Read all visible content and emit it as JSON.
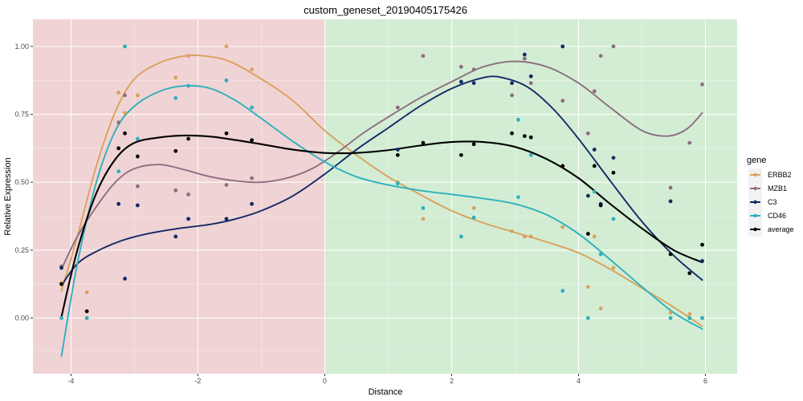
{
  "chart_data": {
    "type": "scatter",
    "title": "custom_geneset_20190405175426",
    "xlabel": "Distance",
    "ylabel": "Relative Expression",
    "xlim": [
      -4.6,
      6.5
    ],
    "ylim": [
      -0.205,
      1.1
    ],
    "x_ticks": [
      -4,
      -2,
      0,
      2,
      4,
      6
    ],
    "x_tick_labels": [
      "-4",
      "-2",
      "0",
      "2",
      "4",
      "6"
    ],
    "y_ticks": [
      0,
      0.25,
      0.5,
      0.75,
      1
    ],
    "y_tick_labels": [
      "0.00",
      "0.25",
      "0.50",
      "0.75",
      "1.00"
    ],
    "regions": [
      {
        "from": -4.6,
        "to": 0,
        "color": "#f0d3d4"
      },
      {
        "from": 0,
        "to": 6.5,
        "color": "#d3edd4"
      }
    ],
    "grid": true,
    "legend": {
      "title": "gene",
      "position": "right"
    },
    "series": [
      {
        "name": "ERBB2",
        "color": "#d9a25d",
        "points": [
          [
            -4.15,
            0.13
          ],
          [
            -3.75,
            0.095
          ],
          [
            -3.75,
            0.0
          ],
          [
            -3.25,
            0.83
          ],
          [
            -3.15,
            0.755
          ],
          [
            -2.95,
            0.82
          ],
          [
            -2.35,
            0.885
          ],
          [
            -2.15,
            0.965
          ],
          [
            -1.55,
            1.0
          ],
          [
            -1.15,
            0.915
          ],
          [
            1.15,
            0.5
          ],
          [
            1.55,
            0.365
          ],
          [
            2.15,
            0.3
          ],
          [
            2.35,
            0.405
          ],
          [
            2.95,
            0.32
          ],
          [
            3.15,
            0.3
          ],
          [
            3.25,
            0.3
          ],
          [
            3.75,
            0.335
          ],
          [
            4.15,
            0.115
          ],
          [
            4.25,
            0.3
          ],
          [
            4.35,
            0.035
          ],
          [
            4.55,
            0.185
          ],
          [
            5.45,
            0.02
          ],
          [
            5.75,
            0.015
          ],
          [
            5.95,
            0.0
          ]
        ],
        "curve": [
          [
            -4.15,
            0.1
          ],
          [
            -3.9,
            0.3
          ],
          [
            -3.6,
            0.56
          ],
          [
            -3.3,
            0.76
          ],
          [
            -3.0,
            0.88
          ],
          [
            -2.6,
            0.94
          ],
          [
            -2.2,
            0.965
          ],
          [
            -1.9,
            0.965
          ],
          [
            -1.5,
            0.945
          ],
          [
            -1.0,
            0.88
          ],
          [
            -0.5,
            0.8
          ],
          [
            0,
            0.69
          ],
          [
            0.5,
            0.6
          ],
          [
            1,
            0.52
          ],
          [
            1.5,
            0.455
          ],
          [
            2,
            0.395
          ],
          [
            2.5,
            0.35
          ],
          [
            3,
            0.315
          ],
          [
            3.5,
            0.28
          ],
          [
            4,
            0.24
          ],
          [
            4.5,
            0.18
          ],
          [
            5,
            0.11
          ],
          [
            5.5,
            0.04
          ],
          [
            5.95,
            -0.03
          ]
        ]
      },
      {
        "name": "MZB1",
        "color": "#8b6e80",
        "points": [
          [
            -4.15,
            0.19
          ],
          [
            -3.25,
            0.72
          ],
          [
            -3.15,
            0.82
          ],
          [
            -2.95,
            0.485
          ],
          [
            -2.35,
            0.47
          ],
          [
            -2.15,
            0.455
          ],
          [
            -1.55,
            0.49
          ],
          [
            -1.15,
            0.515
          ],
          [
            1.15,
            0.775
          ],
          [
            1.55,
            0.965
          ],
          [
            2.15,
            0.925
          ],
          [
            2.35,
            0.915
          ],
          [
            2.95,
            0.82
          ],
          [
            3.15,
            0.955
          ],
          [
            3.25,
            0.865
          ],
          [
            3.75,
            0.8
          ],
          [
            4.15,
            0.68
          ],
          [
            4.25,
            0.835
          ],
          [
            4.35,
            0.965
          ],
          [
            4.55,
            1.0
          ],
          [
            5.45,
            0.48
          ],
          [
            5.75,
            0.645
          ],
          [
            5.95,
            0.86
          ]
        ],
        "curve": [
          [
            -4.15,
            0.18
          ],
          [
            -3.9,
            0.3
          ],
          [
            -3.6,
            0.41
          ],
          [
            -3.3,
            0.5
          ],
          [
            -3.0,
            0.55
          ],
          [
            -2.6,
            0.565
          ],
          [
            -2.2,
            0.545
          ],
          [
            -1.8,
            0.52
          ],
          [
            -1.4,
            0.505
          ],
          [
            -1.0,
            0.5
          ],
          [
            -0.6,
            0.515
          ],
          [
            -0.2,
            0.55
          ],
          [
            0.2,
            0.61
          ],
          [
            0.6,
            0.68
          ],
          [
            1,
            0.74
          ],
          [
            1.5,
            0.81
          ],
          [
            2,
            0.87
          ],
          [
            2.5,
            0.925
          ],
          [
            3,
            0.945
          ],
          [
            3.5,
            0.925
          ],
          [
            4,
            0.865
          ],
          [
            4.5,
            0.775
          ],
          [
            5,
            0.69
          ],
          [
            5.4,
            0.67
          ],
          [
            5.7,
            0.695
          ],
          [
            5.95,
            0.755
          ]
        ]
      },
      {
        "name": "C3",
        "color": "#112a66",
        "points": [
          [
            -4.15,
            0.185
          ],
          [
            -3.25,
            0.42
          ],
          [
            -3.15,
            0.145
          ],
          [
            -2.95,
            0.415
          ],
          [
            -2.35,
            0.3
          ],
          [
            -2.15,
            0.365
          ],
          [
            -1.55,
            0.365
          ],
          [
            -1.15,
            0.42
          ],
          [
            1.15,
            0.62
          ],
          [
            2.15,
            0.87
          ],
          [
            2.35,
            0.865
          ],
          [
            2.95,
            0.865
          ],
          [
            3.15,
            0.97
          ],
          [
            3.25,
            0.89
          ],
          [
            3.75,
            1.0
          ],
          [
            4.15,
            0.45
          ],
          [
            4.25,
            0.62
          ],
          [
            4.35,
            0.42
          ],
          [
            4.55,
            0.59
          ],
          [
            5.45,
            0.43
          ],
          [
            5.95,
            0.21
          ]
        ],
        "curve": [
          [
            -4.15,
            0.12
          ],
          [
            -3.9,
            0.2
          ],
          [
            -3.6,
            0.245
          ],
          [
            -3.2,
            0.285
          ],
          [
            -2.8,
            0.31
          ],
          [
            -2.3,
            0.33
          ],
          [
            -1.8,
            0.345
          ],
          [
            -1.4,
            0.365
          ],
          [
            -1.0,
            0.395
          ],
          [
            -0.5,
            0.45
          ],
          [
            0,
            0.53
          ],
          [
            0.5,
            0.62
          ],
          [
            1,
            0.7
          ],
          [
            1.5,
            0.78
          ],
          [
            2,
            0.845
          ],
          [
            2.5,
            0.885
          ],
          [
            2.8,
            0.885
          ],
          [
            3.2,
            0.85
          ],
          [
            3.6,
            0.77
          ],
          [
            4,
            0.66
          ],
          [
            4.5,
            0.505
          ],
          [
            5,
            0.355
          ],
          [
            5.5,
            0.23
          ],
          [
            5.95,
            0.14
          ]
        ]
      },
      {
        "name": "CD46",
        "color": "#2eb0bd",
        "points": [
          [
            -4.15,
            0.0
          ],
          [
            -3.75,
            0.0
          ],
          [
            -3.25,
            0.54
          ],
          [
            -3.15,
            1.0
          ],
          [
            -2.95,
            0.66
          ],
          [
            -2.35,
            0.81
          ],
          [
            -2.15,
            0.855
          ],
          [
            -1.55,
            0.875
          ],
          [
            -1.15,
            0.775
          ],
          [
            1.15,
            0.495
          ],
          [
            1.55,
            0.405
          ],
          [
            2.15,
            0.3
          ],
          [
            2.35,
            0.37
          ],
          [
            3.05,
            0.445
          ],
          [
            3.05,
            0.73
          ],
          [
            3.25,
            0.6
          ],
          [
            3.75,
            0.1
          ],
          [
            4.15,
            0.0
          ],
          [
            4.25,
            0.465
          ],
          [
            4.35,
            0.235
          ],
          [
            4.55,
            0.365
          ],
          [
            5.45,
            0.0
          ],
          [
            5.75,
            0.0
          ],
          [
            5.95,
            0.0
          ]
        ],
        "curve": [
          [
            -4.15,
            -0.14
          ],
          [
            -3.9,
            0.2
          ],
          [
            -3.6,
            0.5
          ],
          [
            -3.3,
            0.69
          ],
          [
            -3.0,
            0.78
          ],
          [
            -2.6,
            0.835
          ],
          [
            -2.2,
            0.855
          ],
          [
            -1.8,
            0.845
          ],
          [
            -1.4,
            0.8
          ],
          [
            -1.0,
            0.735
          ],
          [
            -0.5,
            0.65
          ],
          [
            0,
            0.575
          ],
          [
            0.5,
            0.52
          ],
          [
            1,
            0.49
          ],
          [
            1.5,
            0.47
          ],
          [
            2,
            0.455
          ],
          [
            2.5,
            0.44
          ],
          [
            3,
            0.42
          ],
          [
            3.5,
            0.38
          ],
          [
            4,
            0.31
          ],
          [
            4.5,
            0.215
          ],
          [
            5,
            0.115
          ],
          [
            5.5,
            0.02
          ],
          [
            5.95,
            -0.04
          ]
        ]
      },
      {
        "name": "average",
        "color": "#000000",
        "points": [
          [
            -4.15,
            0.125
          ],
          [
            -3.75,
            0.025
          ],
          [
            -3.25,
            0.625
          ],
          [
            -3.15,
            0.68
          ],
          [
            -2.95,
            0.595
          ],
          [
            -2.35,
            0.615
          ],
          [
            -2.15,
            0.66
          ],
          [
            -1.55,
            0.68
          ],
          [
            -1.15,
            0.655
          ],
          [
            1.15,
            0.6
          ],
          [
            1.55,
            0.645
          ],
          [
            2.15,
            0.6
          ],
          [
            2.35,
            0.64
          ],
          [
            2.95,
            0.68
          ],
          [
            3.15,
            0.67
          ],
          [
            3.25,
            0.665
          ],
          [
            3.75,
            0.56
          ],
          [
            4.15,
            0.31
          ],
          [
            4.25,
            0.56
          ],
          [
            4.35,
            0.415
          ],
          [
            4.55,
            0.535
          ],
          [
            5.45,
            0.235
          ],
          [
            5.75,
            0.165
          ],
          [
            5.95,
            0.27
          ]
        ],
        "curve": [
          [
            -4.15,
            0.005
          ],
          [
            -3.9,
            0.25
          ],
          [
            -3.6,
            0.46
          ],
          [
            -3.3,
            0.585
          ],
          [
            -3.0,
            0.645
          ],
          [
            -2.6,
            0.665
          ],
          [
            -2.2,
            0.672
          ],
          [
            -1.8,
            0.668
          ],
          [
            -1.4,
            0.655
          ],
          [
            -1.0,
            0.64
          ],
          [
            -0.5,
            0.62
          ],
          [
            0,
            0.608
          ],
          [
            0.5,
            0.608
          ],
          [
            1,
            0.618
          ],
          [
            1.5,
            0.635
          ],
          [
            2,
            0.648
          ],
          [
            2.5,
            0.648
          ],
          [
            3,
            0.63
          ],
          [
            3.5,
            0.585
          ],
          [
            4,
            0.515
          ],
          [
            4.5,
            0.42
          ],
          [
            5,
            0.33
          ],
          [
            5.5,
            0.25
          ],
          [
            5.95,
            0.205
          ]
        ]
      }
    ]
  }
}
